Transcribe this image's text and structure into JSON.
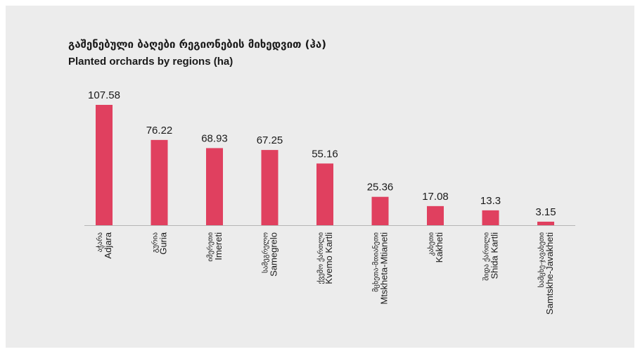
{
  "chart_data": {
    "type": "bar",
    "title": "გაშენებული ბაღები რეგიონების მიხედვით (ჰა)",
    "subtitle": "Planted orchards by regions (ha)",
    "categories": [
      "Adjara",
      "Guria",
      "Imereti",
      "Samegrelo",
      "Kvemo Kartli",
      "Mtskheta-Mtianeti",
      "Kakheti",
      "Shida Kartli",
      "Samtskhe-Javakheti"
    ],
    "categories_ka": [
      "აჭარა",
      "გურია",
      "იმერეთი",
      "სამეგრელო",
      "ქვემო ქართლი",
      "მცხეთა-მთიანეთი",
      "კახეთი",
      "შიდა ქართლი",
      "სამცხე-ჯავახეთი"
    ],
    "values": [
      107.58,
      76.22,
      68.93,
      67.25,
      55.16,
      25.36,
      17.08,
      13.3,
      3.15
    ],
    "color": "#e0405f"
  }
}
